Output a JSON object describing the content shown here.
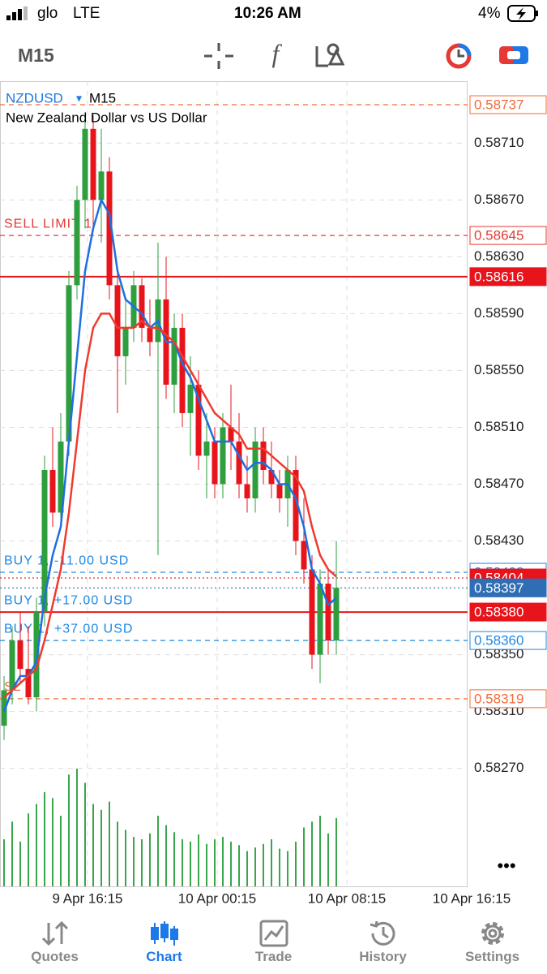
{
  "status_bar": {
    "carrier": "glo",
    "network": "LTE",
    "time": "10:26 AM",
    "battery": "4%"
  },
  "toolbar": {
    "timeframe": "M15"
  },
  "chart_data": {
    "type": "candlestick",
    "symbol": "NZDUSD",
    "timeframe": "M15",
    "description": "New Zealand Dollar vs US Dollar",
    "up_color": "#2e9e3e",
    "down_color": "#e8141b",
    "xlim": [
      -0.5,
      57.2
    ],
    "xticks": [
      {
        "value": 10.3,
        "label": "9 Apr 16:15"
      },
      {
        "value": 26.3,
        "label": "10 Apr 00:15"
      },
      {
        "value": 42.3,
        "label": "10 Apr 08:15"
      },
      {
        "value": 57.7,
        "label": "10 Apr 16:15"
      }
    ],
    "ylim": [
      0.58187,
      0.58749
    ],
    "yticks": [
      {
        "value": 0.5871,
        "label": "0.58710"
      },
      {
        "value": 0.5867,
        "label": "0.58670"
      },
      {
        "value": 0.5863,
        "label": "0.58630"
      },
      {
        "value": 0.5859,
        "label": "0.58590"
      },
      {
        "value": 0.5855,
        "label": "0.58550"
      },
      {
        "value": 0.5851,
        "label": "0.58510"
      },
      {
        "value": 0.5847,
        "label": "0.58470"
      },
      {
        "value": 0.5843,
        "label": "0.58430"
      },
      {
        "value": 0.5835,
        "label": "0.58350"
      },
      {
        "value": 0.5831,
        "label": "0.58310"
      },
      {
        "value": 0.5827,
        "label": "0.58270"
      }
    ],
    "grid": true,
    "candles": [
      [
        0.583,
        0.58335,
        0.5829,
        0.58325
      ],
      [
        0.58325,
        0.5837,
        0.58315,
        0.5836
      ],
      [
        0.5836,
        0.5838,
        0.5833,
        0.5834
      ],
      [
        0.5834,
        0.5837,
        0.58315,
        0.5832
      ],
      [
        0.5832,
        0.5839,
        0.5831,
        0.5838
      ],
      [
        0.5838,
        0.5849,
        0.5837,
        0.5848
      ],
      [
        0.5848,
        0.5851,
        0.5844,
        0.5845
      ],
      [
        0.5845,
        0.5852,
        0.5844,
        0.585
      ],
      [
        0.585,
        0.5862,
        0.5849,
        0.5861
      ],
      [
        0.5861,
        0.5868,
        0.586,
        0.5867
      ],
      [
        0.5867,
        0.5873,
        0.5865,
        0.5872
      ],
      [
        0.5872,
        0.5873,
        0.5865,
        0.5867
      ],
      [
        0.5867,
        0.5872,
        0.5864,
        0.5869
      ],
      [
        0.5869,
        0.587,
        0.586,
        0.5861
      ],
      [
        0.5861,
        0.5862,
        0.5852,
        0.5856
      ],
      [
        0.5856,
        0.586,
        0.5854,
        0.5858
      ],
      [
        0.5858,
        0.5862,
        0.5857,
        0.5861
      ],
      [
        0.5861,
        0.58615,
        0.5857,
        0.5858
      ],
      [
        0.5858,
        0.586,
        0.5856,
        0.5857
      ],
      [
        0.5857,
        0.5864,
        0.5842,
        0.586
      ],
      [
        0.586,
        0.5863,
        0.5853,
        0.5854
      ],
      [
        0.5854,
        0.5859,
        0.5852,
        0.5858
      ],
      [
        0.5858,
        0.5859,
        0.5851,
        0.5852
      ],
      [
        0.5852,
        0.5856,
        0.5849,
        0.5854
      ],
      [
        0.5854,
        0.5855,
        0.5848,
        0.5849
      ],
      [
        0.5849,
        0.5852,
        0.5846,
        0.585
      ],
      [
        0.585,
        0.5851,
        0.5846,
        0.5847
      ],
      [
        0.5847,
        0.5852,
        0.5846,
        0.5851
      ],
      [
        0.5851,
        0.5854,
        0.5848,
        0.585
      ],
      [
        0.585,
        0.5852,
        0.5846,
        0.5847
      ],
      [
        0.5847,
        0.5849,
        0.5845,
        0.5846
      ],
      [
        0.5846,
        0.5851,
        0.5845,
        0.585
      ],
      [
        0.585,
        0.5851,
        0.5847,
        0.5848
      ],
      [
        0.5848,
        0.585,
        0.5846,
        0.5847
      ],
      [
        0.5847,
        0.5848,
        0.5845,
        0.5846
      ],
      [
        0.5846,
        0.5849,
        0.5844,
        0.5848
      ],
      [
        0.5848,
        0.5849,
        0.5842,
        0.5843
      ],
      [
        0.5843,
        0.5846,
        0.584,
        0.5841
      ],
      [
        0.5841,
        0.5842,
        0.5834,
        0.5835
      ],
      [
        0.5835,
        0.5841,
        0.5833,
        0.584
      ],
      [
        0.584,
        0.5841,
        0.5835,
        0.5836
      ],
      [
        0.5836,
        0.5843,
        0.5835,
        0.58397
      ]
    ],
    "moving_averages": [
      {
        "color": "#1e6fe0",
        "values": [
          0.5831,
          0.58325,
          0.58335,
          0.58335,
          0.58345,
          0.5839,
          0.5842,
          0.5844,
          0.585,
          0.5856,
          0.5862,
          0.5865,
          0.5867,
          0.5866,
          0.5862,
          0.586,
          0.58595,
          0.5859,
          0.5858,
          0.58585,
          0.5857,
          0.5857,
          0.58555,
          0.58545,
          0.5853,
          0.58515,
          0.585,
          0.585,
          0.585,
          0.5849,
          0.5848,
          0.58485,
          0.58485,
          0.5848,
          0.5847,
          0.5847,
          0.5846,
          0.5844,
          0.5841,
          0.584,
          0.58385,
          0.5839
        ]
      },
      {
        "color": "#f03a2e",
        "values": [
          0.5832,
          0.58325,
          0.5833,
          0.58335,
          0.5834,
          0.5836,
          0.58385,
          0.5841,
          0.5845,
          0.585,
          0.5855,
          0.5858,
          0.5859,
          0.5859,
          0.5858,
          0.5858,
          0.5858,
          0.58585,
          0.5858,
          0.5858,
          0.58575,
          0.5857,
          0.5856,
          0.5855,
          0.5854,
          0.5853,
          0.5852,
          0.58515,
          0.5851,
          0.58505,
          0.58495,
          0.58495,
          0.58495,
          0.5849,
          0.58485,
          0.5848,
          0.58475,
          0.58465,
          0.5844,
          0.5842,
          0.5841,
          0.58405
        ]
      }
    ],
    "volume_color": "#3aa64a",
    "volumes": [
      40,
      55,
      38,
      62,
      70,
      80,
      75,
      60,
      95,
      100,
      88,
      70,
      65,
      72,
      55,
      48,
      42,
      40,
      45,
      60,
      52,
      46,
      40,
      38,
      44,
      36,
      40,
      42,
      38,
      35,
      30,
      33,
      36,
      40,
      32,
      30,
      38,
      50,
      55,
      60,
      45,
      58
    ],
    "levels": [
      {
        "value": 0.58737,
        "label": "0.58737",
        "color": "#f26b3a",
        "line": "dashed",
        "box": "outline"
      },
      {
        "text": "SELL LIMIT 1",
        "value": 0.58645,
        "label": "0.58645",
        "color": "#e53935",
        "line": "dashed",
        "box": "outline"
      },
      {
        "value": 0.58616,
        "label": "0.58616",
        "color": "#e8141b",
        "line": "solid",
        "box": "filled"
      },
      {
        "text": "BUY 1, -11.00 USD",
        "value": 0.58408,
        "label": "0.58408",
        "color": "#1e88e5",
        "line": "dashed",
        "box": "outline"
      },
      {
        "value": 0.58404,
        "label": "0.58404",
        "color": "#e8141b",
        "line": "dotted",
        "box": "filled"
      },
      {
        "value": 0.58397,
        "label": "0.58397",
        "color": "#2f6db5",
        "line": "dotted",
        "box": "filled"
      },
      {
        "text": "BUY 1, +17.00 USD",
        "text_color": "#1e88e5",
        "value": 0.5838,
        "label": "0.58380",
        "color": "#e8141b",
        "line": "solid",
        "box": "filled"
      },
      {
        "text": "BUY 1, +37.00 USD",
        "value": 0.5836,
        "label": "0.58360",
        "color": "#1e88e5",
        "line": "dashed",
        "box": "outline"
      },
      {
        "text": "SL",
        "value": 0.58319,
        "label": "0.58319",
        "color": "#f26b3a",
        "line": "dashed",
        "box": "outline"
      }
    ]
  },
  "tabs": [
    "Quotes",
    "Chart",
    "Trade",
    "History",
    "Settings"
  ]
}
